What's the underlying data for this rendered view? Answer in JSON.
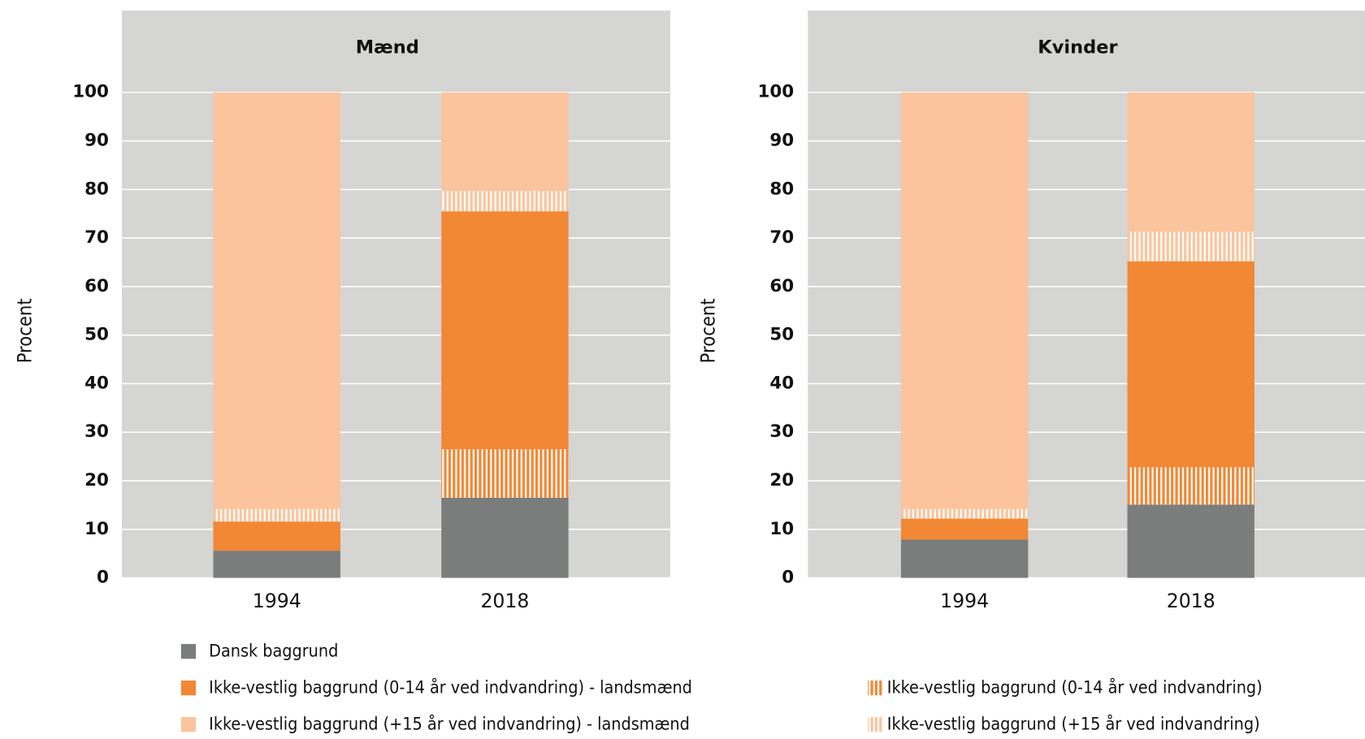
{
  "chart_data": [
    {
      "type": "stacked-bar",
      "title": "Mænd",
      "ylabel": "Procent",
      "categories": [
        "1994",
        "2018"
      ],
      "ylim": [
        0,
        100
      ],
      "yticks": [
        0,
        10,
        20,
        30,
        40,
        50,
        60,
        70,
        80,
        90,
        100
      ],
      "grid": true,
      "series": [
        {
          "name": "Dansk baggrund",
          "color": "#7a7d7c",
          "hatch": false,
          "values": [
            5.6,
            16.5
          ]
        },
        {
          "name": "Ikke-vestlig baggrund (0-14 år ved indvandring)",
          "color": "#f28734",
          "hatch": true,
          "values": [
            0,
            10.0
          ]
        },
        {
          "name": "Ikke-vestlig baggrund (0-14 år ved indvandring) - landsmænd",
          "color": "#f28734",
          "hatch": false,
          "values": [
            6.0,
            49.0
          ]
        },
        {
          "name": "Ikke-vestlig baggrund (+15 år ved indvandring)",
          "color": "#fbc49c",
          "hatch": true,
          "values": [
            2.6,
            4.2
          ]
        },
        {
          "name": "Ikke-vestlig baggrund (+15 år ved indvandring) - landsmænd",
          "color": "#fbc49c",
          "hatch": false,
          "values": [
            85.8,
            20.3
          ]
        }
      ]
    },
    {
      "type": "stacked-bar",
      "title": "Kvinder",
      "ylabel": "Procent",
      "categories": [
        "1994",
        "2018"
      ],
      "ylim": [
        0,
        100
      ],
      "yticks": [
        0,
        10,
        20,
        30,
        40,
        50,
        60,
        70,
        80,
        90,
        100
      ],
      "grid": true,
      "series": [
        {
          "values": [
            7.9,
            15.1
          ]
        },
        {
          "values": [
            0,
            7.7
          ]
        },
        {
          "values": [
            4.3,
            42.4
          ]
        },
        {
          "values": [
            2.0,
            6.1
          ]
        },
        {
          "values": [
            85.8,
            28.7
          ]
        }
      ]
    }
  ]
}
